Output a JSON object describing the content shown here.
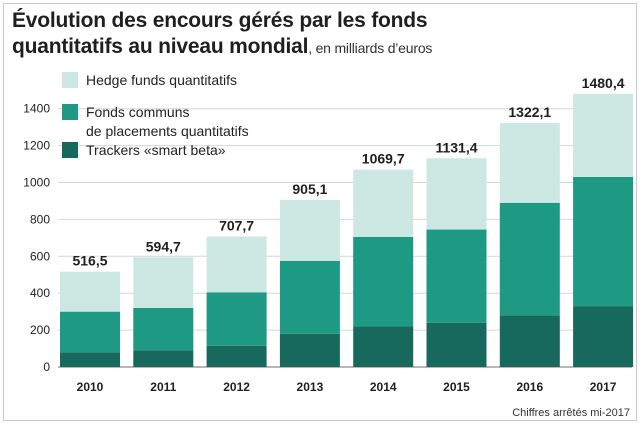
{
  "title": {
    "line1": "Évolution des encours gérés par les fonds",
    "line2": "quantitatifs au niveau mondial",
    "subtitle": ", en milliards d’euros"
  },
  "footnote": "Chiffres arrêtés mi-2017",
  "colors": {
    "hedge": "#cde8e2",
    "fonds": "#1e9a84",
    "trackers": "#17695d",
    "grid": "#d6d6d6"
  },
  "chart_data": {
    "type": "bar",
    "stacked": true,
    "categories": [
      "2010",
      "2011",
      "2012",
      "2013",
      "2014",
      "2015",
      "2016",
      "2017"
    ],
    "series": [
      {
        "name": "Trackers «smart beta»",
        "values": [
          80,
          90,
          115,
          180,
          220,
          240,
          280,
          330
        ]
      },
      {
        "name": "Fonds communs de placements quantitatifs",
        "values": [
          220,
          230,
          290,
          395,
          485,
          505,
          610,
          700
        ]
      },
      {
        "name": "Hedge funds quantitatifs",
        "values": [
          216.5,
          274.7,
          302.7,
          330.1,
          364.7,
          386.4,
          432.1,
          450.4
        ]
      }
    ],
    "legend_lines": {
      "hedge": [
        "Hedge funds quantitatifs"
      ],
      "fonds": [
        "Fonds communs",
        "de placements quantitatifs"
      ],
      "trackers": [
        "Trackers «smart beta»"
      ]
    },
    "totals": [
      "516,5",
      "594,7",
      "707,7",
      "905,1",
      "1069,7",
      "1131,4",
      "1322,1",
      "1480,4"
    ],
    "yticks": [
      "0",
      "200",
      "400",
      "600",
      "800",
      "1000",
      "1200",
      "1400"
    ],
    "ylim": [
      0,
      1480.4
    ],
    "grid": true,
    "legend_position": "top-left"
  }
}
